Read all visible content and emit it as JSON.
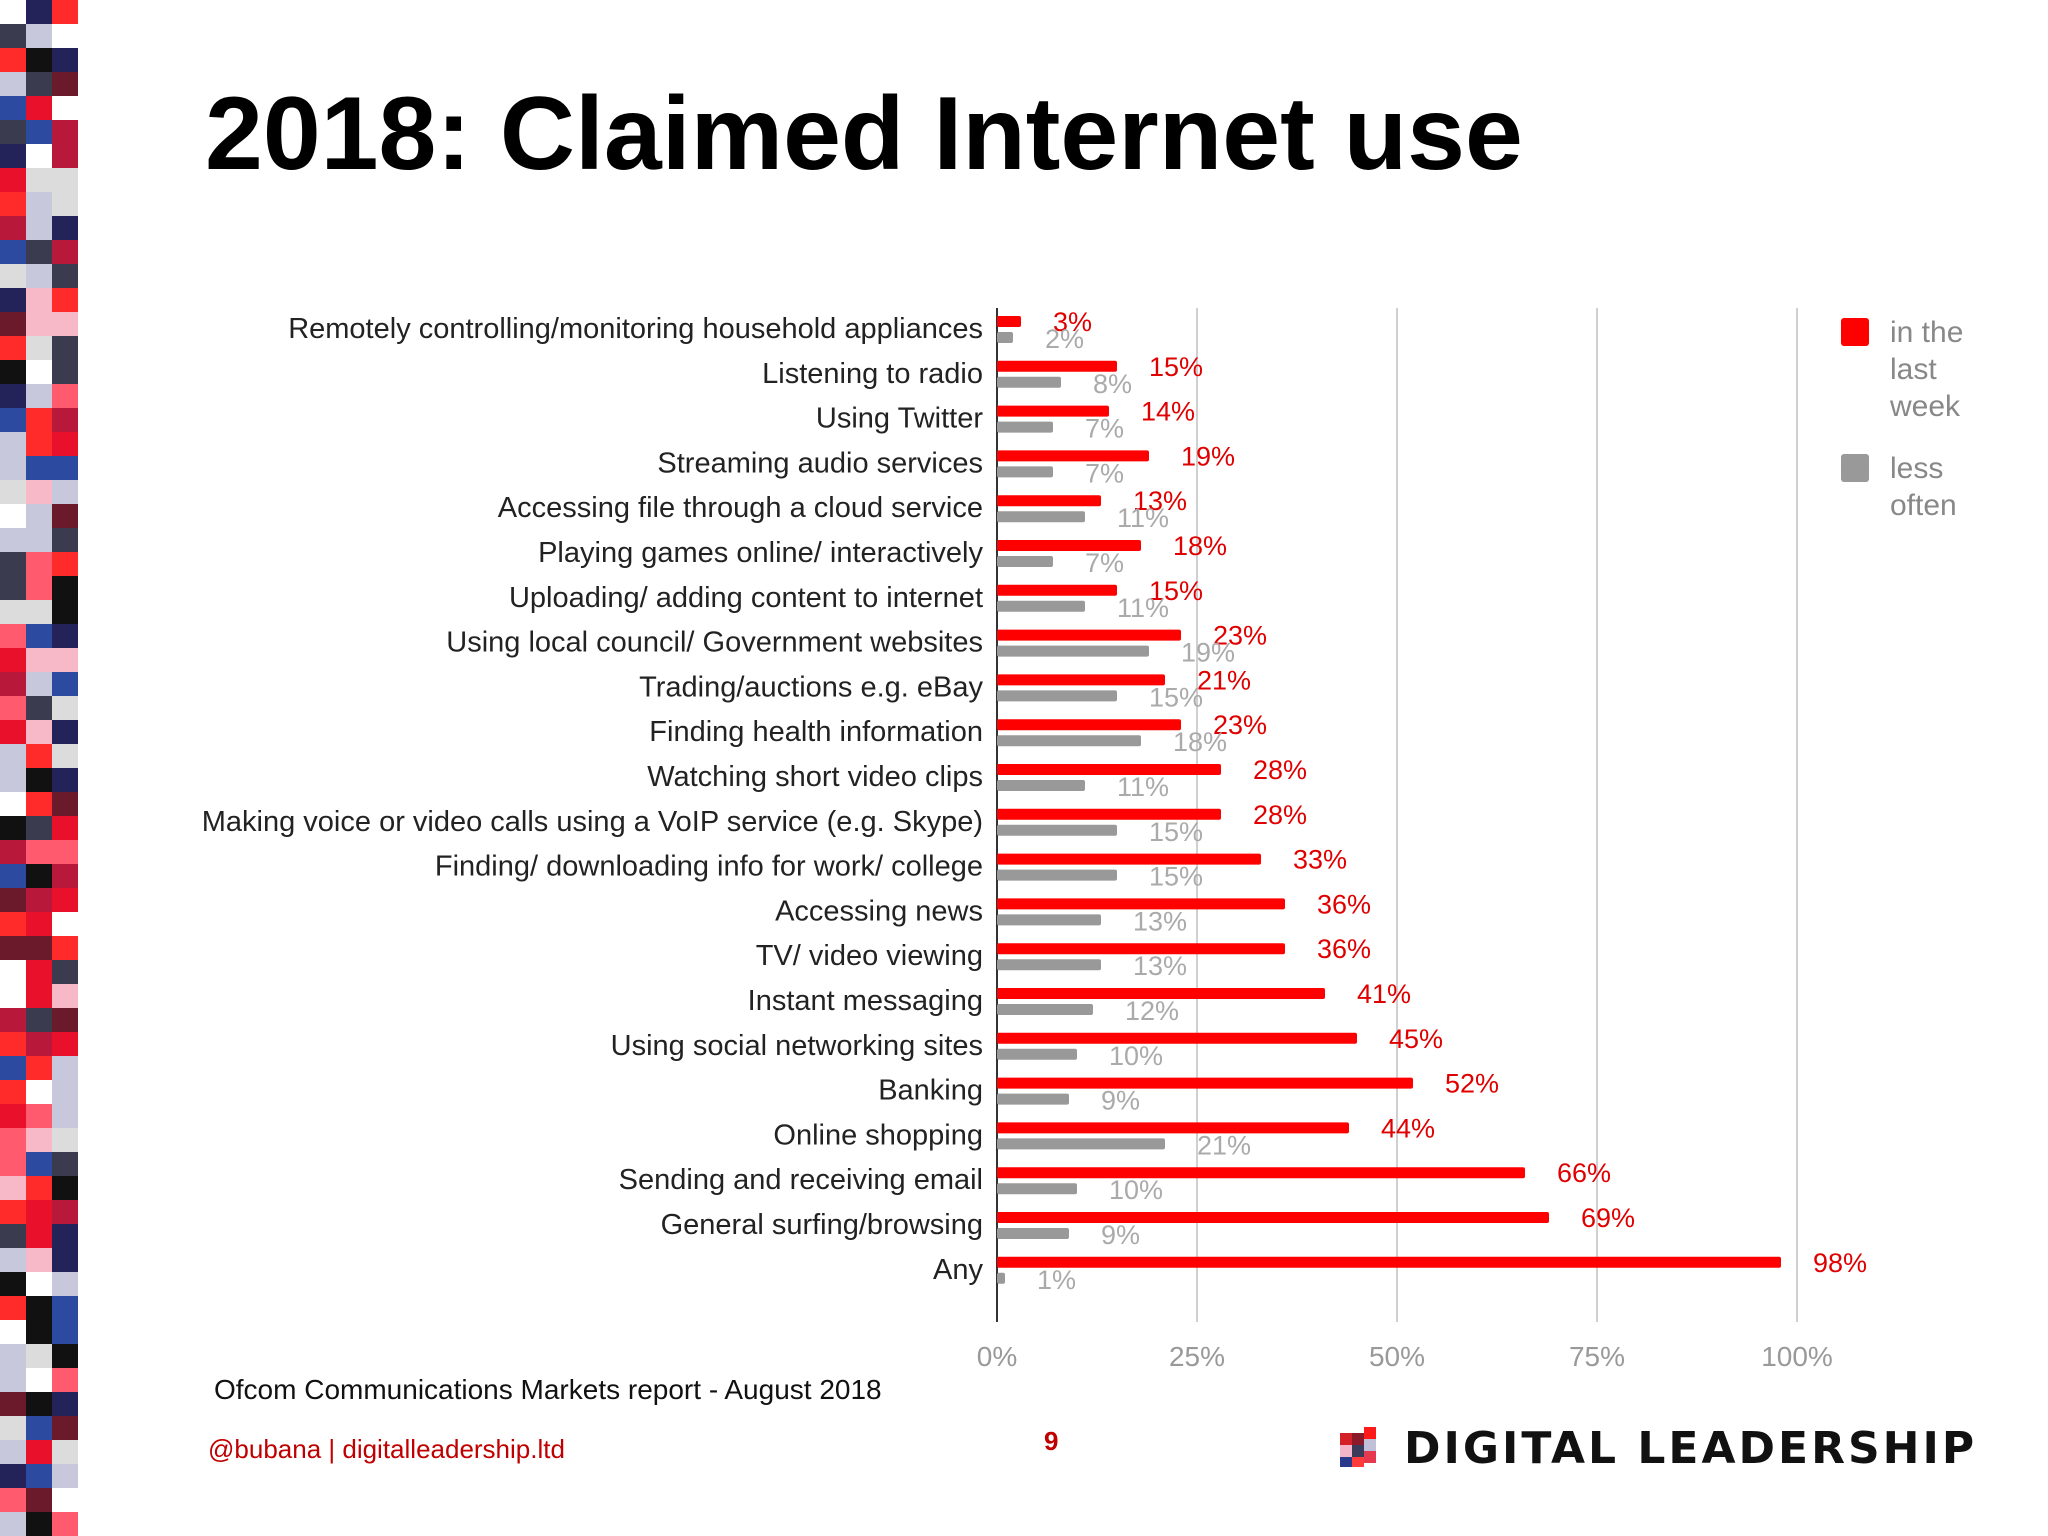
{
  "slide": {
    "title": "2018: Claimed Internet use",
    "source": "Ofcom Communications Markets report - August 2018",
    "handle": "@bubana | digitalleadership.ltd",
    "page_number": "9",
    "brand": "DIGITAL LEADERSHIP"
  },
  "colors": {
    "last_week": "#ff0000",
    "less_often": "#999999",
    "last_week_label": "#e00000",
    "less_often_label": "#aaaaaa",
    "gridline": "#d0d0d0",
    "axis": "#333333"
  },
  "legend": {
    "position": "top-right",
    "items": [
      {
        "lines": [
          "in the",
          "last",
          "week"
        ]
      },
      {
        "lines": [
          "less",
          "often"
        ]
      }
    ]
  },
  "chart_data": {
    "type": "bar",
    "orientation": "horizontal",
    "title": "2018: Claimed Internet use",
    "xlim": [
      0,
      100
    ],
    "x_ticks": [
      "0%",
      "25%",
      "50%",
      "75%",
      "100%"
    ],
    "grid": true,
    "categories": [
      "Remotely controlling/monitoring household appliances",
      "Listening to radio",
      "Using Twitter",
      "Streaming audio services",
      "Accessing file through a cloud service",
      "Playing games online/ interactively",
      "Uploading/ adding content to internet",
      "Using local council/ Government websites",
      "Trading/auctions e.g. eBay",
      "Finding health information",
      "Watching short video clips",
      "Making voice or video calls using a VoIP service (e.g. Skype)",
      "Finding/ downloading info for work/ college",
      "Accessing news",
      "TV/ video viewing",
      "Instant messaging",
      "Using social networking sites",
      "Banking",
      "Online shopping",
      "Sending and receiving email",
      "General surfing/browsing",
      "Any"
    ],
    "series": [
      {
        "name": "in the last week",
        "values": [
          3,
          15,
          14,
          19,
          13,
          18,
          15,
          23,
          21,
          23,
          28,
          28,
          33,
          36,
          36,
          41,
          45,
          52,
          44,
          66,
          69,
          98
        ],
        "labels": [
          "3%",
          "15%",
          "14%",
          "19%",
          "13%",
          "18%",
          "15%",
          "23%",
          "21%",
          "23%",
          "28%",
          "28%",
          "33%",
          "36%",
          "36%",
          "41%",
          "45%",
          "52%",
          "44%",
          "66%",
          "69%",
          "98%"
        ]
      },
      {
        "name": "less often",
        "values": [
          2,
          8,
          7,
          7,
          11,
          7,
          11,
          19,
          15,
          18,
          11,
          15,
          15,
          13,
          13,
          12,
          10,
          9,
          21,
          10,
          9,
          1
        ],
        "labels": [
          "2%",
          "8%",
          "7%",
          "7%",
          "11%",
          "7%",
          "11%",
          "19%",
          "15%",
          "18%",
          "11%",
          "15%",
          "15%",
          "13%",
          "13%",
          "12%",
          "10%",
          "9%",
          "21%",
          "10%",
          "9%",
          "1%"
        ]
      }
    ]
  }
}
